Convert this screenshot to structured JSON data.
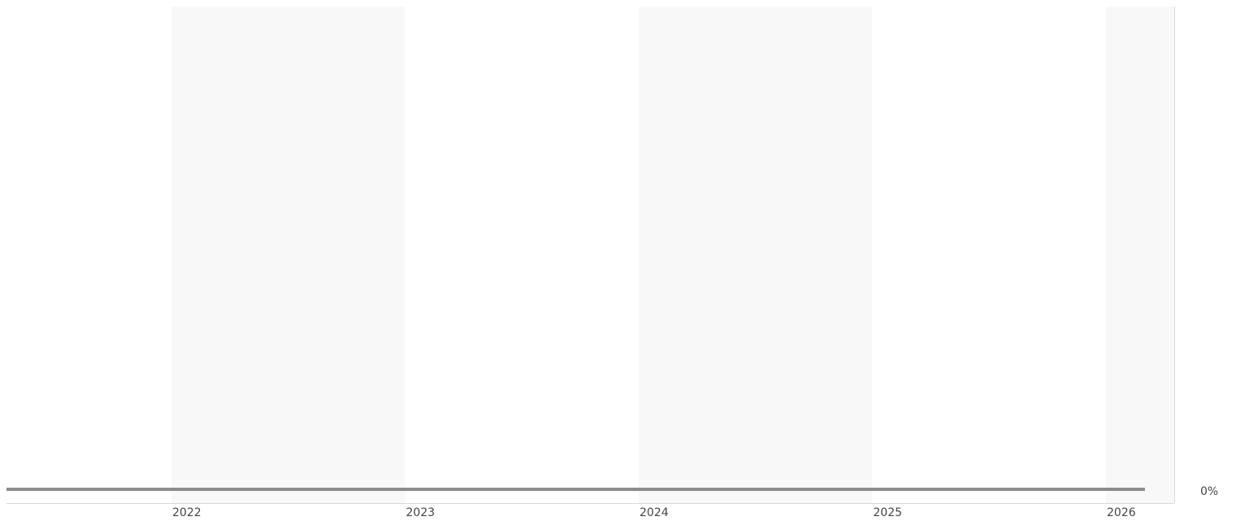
{
  "chart_data": {
    "type": "line",
    "title": "",
    "xlabel": "",
    "ylabel": "",
    "x_ticks": [
      "2022",
      "2023",
      "2024",
      "2025",
      "2026"
    ],
    "x": [
      "2021-04",
      "2026-03"
    ],
    "y_ticks": [
      "0%"
    ],
    "y_axis_side": "right",
    "series": [
      {
        "values": [
          0,
          0
        ]
      }
    ],
    "band_years": [
      "2022",
      "2024",
      "2026"
    ],
    "grid": false,
    "legend": "none",
    "colors": {
      "series": "#8c8c8c",
      "band": "#f8f8f8",
      "axis": "#d9d9d9",
      "text": "#444444"
    }
  }
}
